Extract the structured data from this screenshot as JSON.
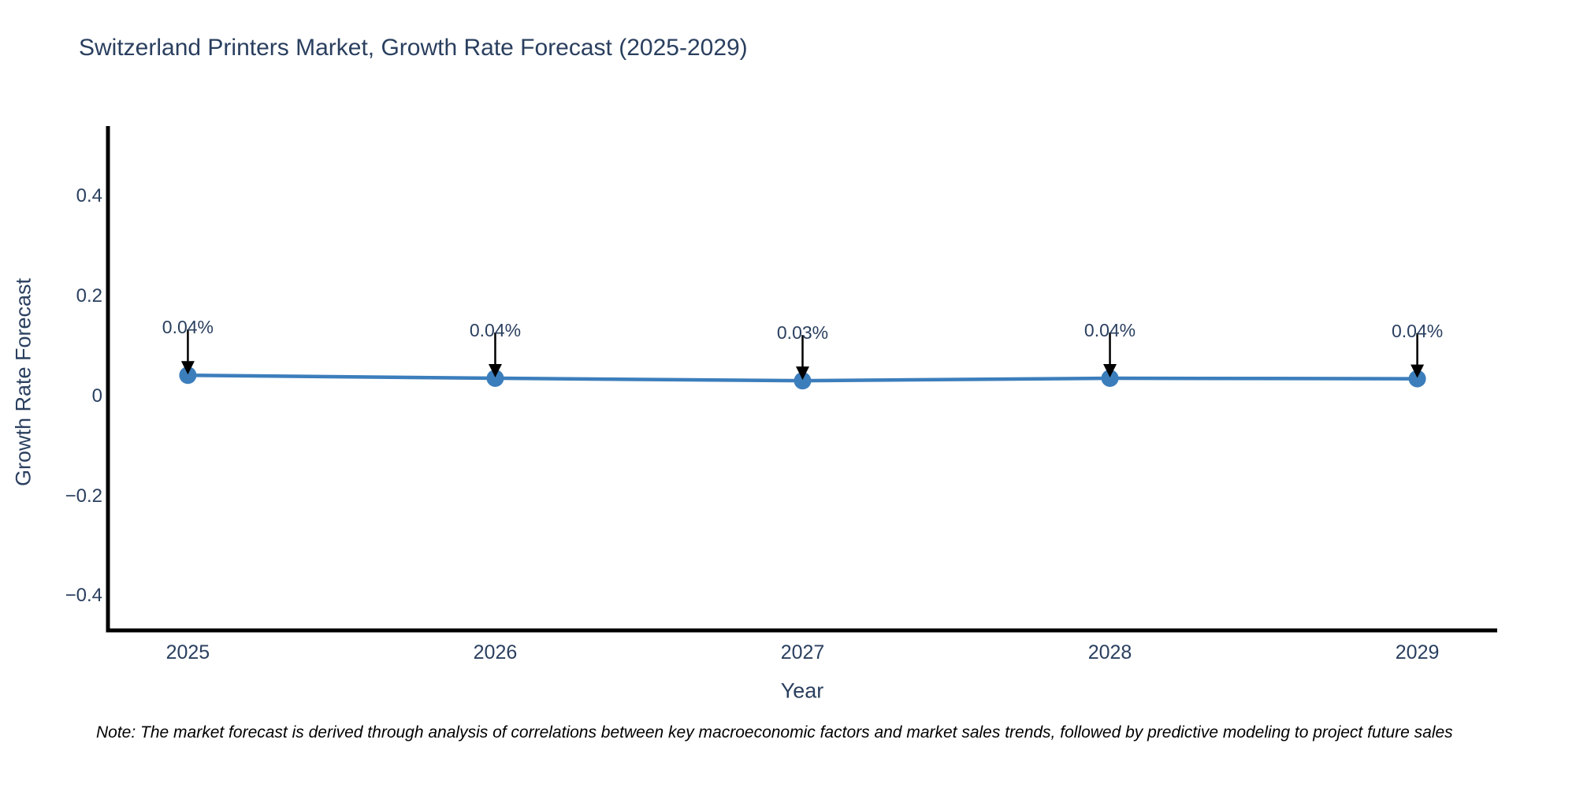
{
  "chart": {
    "note": "Note: The market forecast is derived through analysis of correlations between key macroeconomic factors and market sales trends, followed by predictive modeling to project future sales"
  },
  "chart_data": {
    "type": "line",
    "title": "Switzerland Printers Market, Growth Rate Forecast (2025-2029)",
    "xlabel": "Year",
    "ylabel": "Growth Rate Forecast",
    "x": [
      2025,
      2026,
      2027,
      2028,
      2029
    ],
    "values": [
      0.042,
      0.036,
      0.031,
      0.036,
      0.035
    ],
    "point_labels": [
      "0.04%",
      "0.04%",
      "0.03%",
      "0.04%",
      "0.04%"
    ],
    "x_tick_labels": [
      "2025",
      "2026",
      "2027",
      "2028",
      "2029"
    ],
    "y_ticks": [
      0.4,
      0.2,
      0,
      -0.2,
      -0.4
    ],
    "y_tick_labels": [
      "0.4",
      "0.2",
      "0",
      "−0.2",
      "−0.4"
    ],
    "xlim": [
      2024.74,
      2029.26
    ],
    "ylim": [
      -0.469,
      0.541
    ],
    "grid": false,
    "legend": "none",
    "line_color": "#3c7ebc",
    "marker_color": "#3c7ebc",
    "line_width": 4.5,
    "marker_radius": 11,
    "axis_line_color": "#000000",
    "annotation_arrow_color": "#000000",
    "text_color": "#2a3f5f"
  }
}
